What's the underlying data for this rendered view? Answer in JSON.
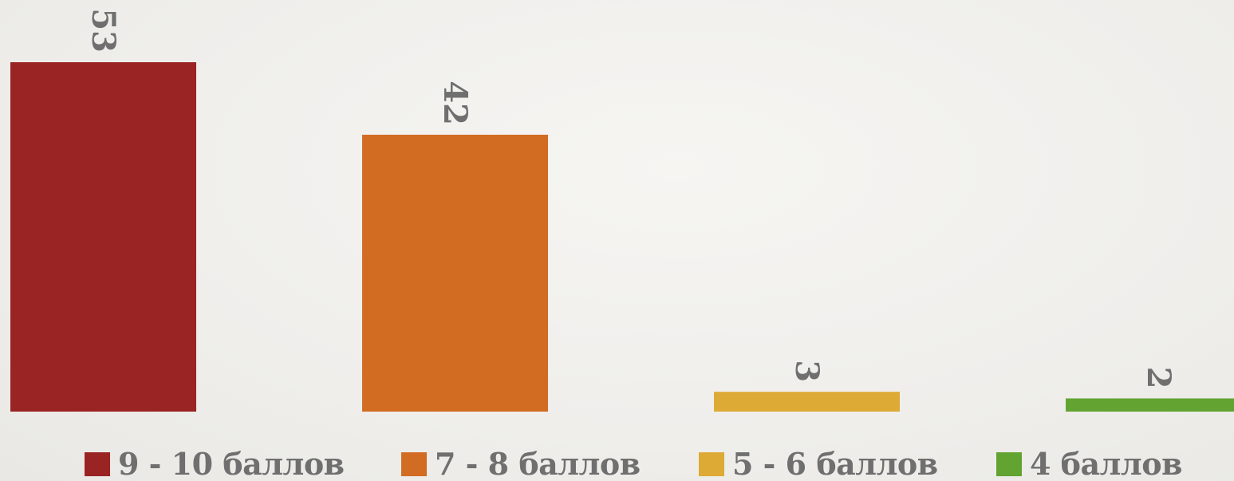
{
  "chart_data": {
    "type": "bar",
    "categories": [
      "9 - 10 баллов",
      "7 - 8 баллов",
      "5 - 6 баллов",
      "4 баллов"
    ],
    "values": [
      53,
      42,
      3,
      2
    ],
    "colors": [
      "#9a2323",
      "#d26c23",
      "#ddaa35",
      "#62a331"
    ],
    "title": "",
    "xlabel": "",
    "ylabel": "",
    "ylim": [
      0,
      53
    ],
    "grid": false,
    "legend": "bottom",
    "data_labels": "rotated-90"
  }
}
